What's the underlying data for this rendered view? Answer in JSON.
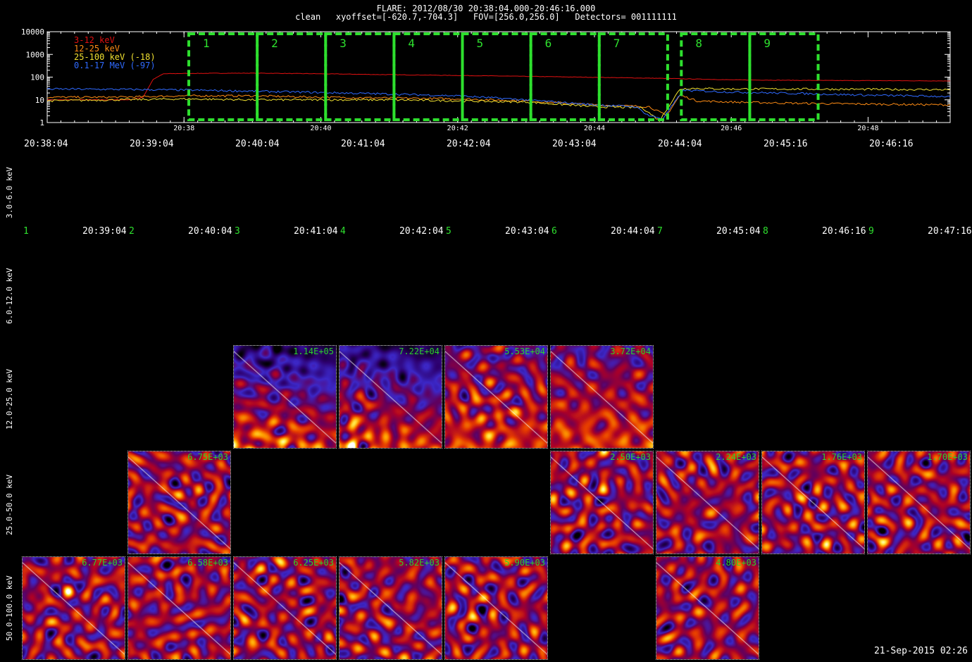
{
  "header": {
    "line1": "FLARE: 2012/08/30 20:38:04.000-20:46:16.000",
    "line2": "clean   xyoffset=[-620.7,-704.3]   FOV=[256.0,256.0]   Detectors= 001111111"
  },
  "colors": {
    "band_3_12": "#e01010",
    "band_12_25": "#ff8c14",
    "band_25_100": "#f0e030",
    "band_01_17": "#2f6aff",
    "interval_box": "#2ee02e",
    "panel_label": "#2bd22b"
  },
  "chart_data": {
    "type": "line",
    "title": "FLARE: 2012/08/30 20:38:04.000-20:46:16.000",
    "yscale": "log",
    "ylim": [
      1,
      10000
    ],
    "y_ticks": [
      "10000",
      "1000",
      "100",
      "10",
      "1"
    ],
    "x_ticks": [
      "20:38",
      "20:40",
      "20:42",
      "20:44",
      "20:46",
      "20:48"
    ],
    "x_tick_minutes": [
      38,
      40,
      42,
      44,
      46,
      48
    ],
    "xlim_minutes": [
      36.0,
      49.2
    ],
    "legend_position": "top-left",
    "series": [
      {
        "name": "3-12 keV",
        "color": "#e01010",
        "points": [
          [
            36.0,
            10
          ],
          [
            37.2,
            10
          ],
          [
            37.4,
            13
          ],
          [
            37.55,
            80
          ],
          [
            37.7,
            140
          ],
          [
            38.0,
            145
          ],
          [
            39.0,
            150
          ],
          [
            40.0,
            140
          ],
          [
            41.0,
            128
          ],
          [
            42.0,
            118
          ],
          [
            43.0,
            108
          ],
          [
            44.0,
            98
          ],
          [
            45.0,
            88
          ],
          [
            45.5,
            82
          ],
          [
            46.0,
            76
          ],
          [
            47.0,
            72
          ],
          [
            48.0,
            70
          ],
          [
            49.2,
            68
          ]
        ]
      },
      {
        "name": "12-25 keV",
        "color": "#ff8c14",
        "points": [
          [
            36.0,
            13
          ],
          [
            37.0,
            13
          ],
          [
            38.0,
            15
          ],
          [
            39.0,
            15
          ],
          [
            40.0,
            13
          ],
          [
            41.0,
            12
          ],
          [
            42.0,
            11
          ],
          [
            43.0,
            9
          ],
          [
            44.0,
            6
          ],
          [
            44.8,
            5
          ],
          [
            45.05,
            2
          ],
          [
            45.25,
            16
          ],
          [
            45.5,
            9
          ],
          [
            46.0,
            8
          ],
          [
            47.0,
            7
          ],
          [
            48.0,
            6.5
          ],
          [
            49.2,
            6
          ]
        ]
      },
      {
        "name": "25-100 keV (-18)",
        "color": "#f0e030",
        "points": [
          [
            36.0,
            9
          ],
          [
            37.0,
            10
          ],
          [
            38.0,
            11
          ],
          [
            39.0,
            10
          ],
          [
            40.0,
            10
          ],
          [
            41.0,
            10
          ],
          [
            42.0,
            9
          ],
          [
            43.0,
            8
          ],
          [
            44.0,
            5
          ],
          [
            44.7,
            4.5
          ],
          [
            44.95,
            1.2
          ],
          [
            45.25,
            30
          ],
          [
            45.4,
            32
          ],
          [
            46.0,
            30
          ],
          [
            47.0,
            30
          ],
          [
            48.0,
            29
          ],
          [
            49.2,
            28
          ]
        ]
      },
      {
        "name": "0.1-17 MeV (-97)",
        "color": "#2f6aff",
        "points": [
          [
            36.0,
            30
          ],
          [
            37.0,
            29
          ],
          [
            38.0,
            27
          ],
          [
            39.0,
            24
          ],
          [
            40.0,
            21
          ],
          [
            41.0,
            18
          ],
          [
            42.0,
            15
          ],
          [
            43.0,
            10
          ],
          [
            44.0,
            6
          ],
          [
            44.6,
            5
          ],
          [
            44.8,
            2
          ],
          [
            45.0,
            1.5
          ],
          [
            45.3,
            26
          ],
          [
            46.0,
            22
          ],
          [
            47.0,
            19
          ],
          [
            48.0,
            16
          ],
          [
            49.2,
            14
          ]
        ]
      }
    ],
    "intervals": [
      {
        "label": "1",
        "start": 38.07,
        "end": 39.07
      },
      {
        "label": "2",
        "start": 39.07,
        "end": 40.07
      },
      {
        "label": "3",
        "start": 40.07,
        "end": 41.07
      },
      {
        "label": "4",
        "start": 41.07,
        "end": 42.07
      },
      {
        "label": "5",
        "start": 42.07,
        "end": 43.07
      },
      {
        "label": "6",
        "start": 43.07,
        "end": 44.07
      },
      {
        "label": "7",
        "start": 44.07,
        "end": 45.07
      },
      {
        "label": "8",
        "start": 45.27,
        "end": 46.27
      },
      {
        "label": "9",
        "start": 46.27,
        "end": 47.27
      }
    ]
  },
  "row_times": [
    "20:38:04",
    "20:39:04",
    "20:40:04",
    "20:41:04",
    "20:42:04",
    "20:43:04",
    "20:44:04",
    "20:45:16",
    "20:46:16"
  ],
  "column_labels": [
    {
      "num": "1",
      "end": "20:39:04"
    },
    {
      "num": "2",
      "end": "20:40:04"
    },
    {
      "num": "3",
      "end": "20:41:04"
    },
    {
      "num": "4",
      "end": "20:42:04"
    },
    {
      "num": "5",
      "end": "20:43:04"
    },
    {
      "num": "6",
      "end": "20:44:04"
    },
    {
      "num": "7",
      "end": "20:45:04"
    },
    {
      "num": "8",
      "end": "20:46:16"
    },
    {
      "num": "9",
      "end": "20:47:16"
    }
  ],
  "energy_bands": [
    "3.0-6.0 keV",
    "6.0-12.0 keV",
    "12.0-25.0 keV",
    "25.0-50.0 keV",
    "50.0-100.0 keV"
  ],
  "images": [
    {
      "band": 2,
      "col": 2,
      "value": "1.14E+05",
      "style": "blue"
    },
    {
      "band": 2,
      "col": 3,
      "value": "7.22E+04",
      "style": "blue"
    },
    {
      "band": 2,
      "col": 4,
      "value": "5.53E+04",
      "style": "mixed"
    },
    {
      "band": 2,
      "col": 5,
      "value": "3.72E+04",
      "style": "mixed"
    },
    {
      "band": 3,
      "col": 1,
      "value": "6.75E+03",
      "style": "noise"
    },
    {
      "band": 3,
      "col": 5,
      "value": "2.50E+03",
      "style": "noise"
    },
    {
      "band": 3,
      "col": 6,
      "value": "2.24E+03",
      "style": "noise"
    },
    {
      "band": 3,
      "col": 7,
      "value": "1.76E+03",
      "style": "noise"
    },
    {
      "band": 3,
      "col": 8,
      "value": "1.70E+03",
      "style": "noise"
    },
    {
      "band": 4,
      "col": 0,
      "value": "6.77E+03",
      "style": "noise"
    },
    {
      "band": 4,
      "col": 1,
      "value": "6.58E+03",
      "style": "noise"
    },
    {
      "band": 4,
      "col": 2,
      "value": "6.25E+03",
      "style": "noise"
    },
    {
      "band": 4,
      "col": 3,
      "value": "5.82E+03",
      "style": "noise"
    },
    {
      "band": 4,
      "col": 4,
      "value": "5.90E+03",
      "style": "noise"
    },
    {
      "band": 4,
      "col": 6,
      "value": "4.80E+03",
      "style": "noise"
    }
  ],
  "timestamp": "21-Sep-2015 02:26"
}
